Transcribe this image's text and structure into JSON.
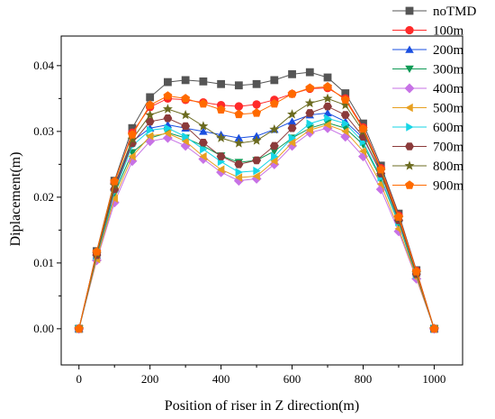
{
  "chart_data": {
    "type": "line",
    "title": "",
    "xlabel": "Position of riser in Z direction(m)",
    "ylabel": "Diplacement(m)",
    "xlim": [
      -50,
      1080
    ],
    "ylim": [
      -0.0055,
      0.0445
    ],
    "xticks": [
      0,
      200,
      400,
      600,
      800,
      1000
    ],
    "yticks": [
      0.0,
      0.01,
      0.02,
      0.03,
      0.04
    ],
    "ytick_labels": [
      "0.00",
      "0.01",
      "0.02",
      "0.03",
      "0.04"
    ],
    "minor_xticks": [
      100,
      300,
      500,
      700,
      900
    ],
    "minor_yticks": [
      0.005,
      0.015,
      0.025,
      0.035
    ],
    "grid": false,
    "legend_position": "top-right",
    "x": [
      0,
      50,
      100,
      150,
      200,
      250,
      300,
      350,
      400,
      450,
      500,
      550,
      600,
      650,
      700,
      750,
      800,
      850,
      900,
      950,
      1000
    ],
    "series": [
      {
        "name": "noTMD",
        "color": "#555555",
        "marker": "square",
        "values": [
          0,
          0.0118,
          0.0225,
          0.0305,
          0.0352,
          0.0375,
          0.0378,
          0.0376,
          0.0372,
          0.037,
          0.0372,
          0.0378,
          0.0387,
          0.039,
          0.0382,
          0.0358,
          0.0312,
          0.0248,
          0.0175,
          0.0089,
          0
        ]
      },
      {
        "name": "100m",
        "color": "#ff2a2a",
        "marker": "circle",
        "values": [
          0,
          0.0116,
          0.0222,
          0.0298,
          0.0337,
          0.035,
          0.0348,
          0.0344,
          0.034,
          0.0338,
          0.0341,
          0.0348,
          0.0357,
          0.0365,
          0.0366,
          0.035,
          0.0306,
          0.0244,
          0.0172,
          0.0088,
          0
        ]
      },
      {
        "name": "200m",
        "color": "#1a4fe0",
        "marker": "triangle-up",
        "values": [
          0,
          0.0112,
          0.0215,
          0.0285,
          0.0305,
          0.031,
          0.0305,
          0.03,
          0.0295,
          0.029,
          0.0293,
          0.0303,
          0.0315,
          0.0325,
          0.0328,
          0.0315,
          0.029,
          0.0238,
          0.0168,
          0.0085,
          0
        ]
      },
      {
        "name": "300m",
        "color": "#0f9a55",
        "marker": "triangle-down",
        "values": [
          0,
          0.0108,
          0.0205,
          0.0268,
          0.029,
          0.0298,
          0.029,
          0.0278,
          0.0263,
          0.0253,
          0.0256,
          0.027,
          0.029,
          0.0305,
          0.0313,
          0.0305,
          0.028,
          0.0228,
          0.016,
          0.008,
          0
        ]
      },
      {
        "name": "400m",
        "color": "#c772e6",
        "marker": "diamond",
        "values": [
          0,
          0.0104,
          0.0192,
          0.0255,
          0.0285,
          0.029,
          0.0278,
          0.0258,
          0.0238,
          0.0225,
          0.0228,
          0.025,
          0.0278,
          0.0298,
          0.0305,
          0.0292,
          0.0262,
          0.0212,
          0.0148,
          0.0076,
          0
        ]
      },
      {
        "name": "500m",
        "color": "#e8a020",
        "marker": "triangle-left",
        "values": [
          0,
          0.0106,
          0.0198,
          0.0262,
          0.0293,
          0.0297,
          0.0285,
          0.0262,
          0.0242,
          0.023,
          0.0232,
          0.0255,
          0.0283,
          0.0302,
          0.031,
          0.03,
          0.027,
          0.022,
          0.0152,
          0.0078,
          0
        ]
      },
      {
        "name": "600m",
        "color": "#16d6e6",
        "marker": "triangle-right",
        "values": [
          0,
          0.011,
          0.0208,
          0.0278,
          0.0302,
          0.0305,
          0.0292,
          0.0273,
          0.0254,
          0.0238,
          0.024,
          0.0262,
          0.029,
          0.0312,
          0.032,
          0.0312,
          0.0284,
          0.023,
          0.0162,
          0.0082,
          0
        ]
      },
      {
        "name": "700m",
        "color": "#8b3a3a",
        "marker": "hexagon",
        "values": [
          0,
          0.0112,
          0.0212,
          0.0282,
          0.0315,
          0.032,
          0.0308,
          0.0283,
          0.0262,
          0.025,
          0.0256,
          0.0278,
          0.0305,
          0.0328,
          0.0338,
          0.0325,
          0.0292,
          0.0236,
          0.0165,
          0.0083,
          0
        ]
      },
      {
        "name": "800m",
        "color": "#6b6b20",
        "marker": "star",
        "values": [
          0,
          0.0114,
          0.0218,
          0.0288,
          0.0325,
          0.0334,
          0.0325,
          0.0308,
          0.029,
          0.0282,
          0.0286,
          0.0303,
          0.0326,
          0.0343,
          0.035,
          0.034,
          0.03,
          0.024,
          0.0168,
          0.0085,
          0
        ]
      },
      {
        "name": "900m",
        "color": "#ff6a00",
        "marker": "pentagon",
        "values": [
          0,
          0.0117,
          0.0224,
          0.0295,
          0.034,
          0.0354,
          0.035,
          0.0342,
          0.0333,
          0.0326,
          0.0328,
          0.0342,
          0.0357,
          0.0366,
          0.0368,
          0.0348,
          0.0304,
          0.0242,
          0.017,
          0.0087,
          0
        ]
      }
    ]
  }
}
